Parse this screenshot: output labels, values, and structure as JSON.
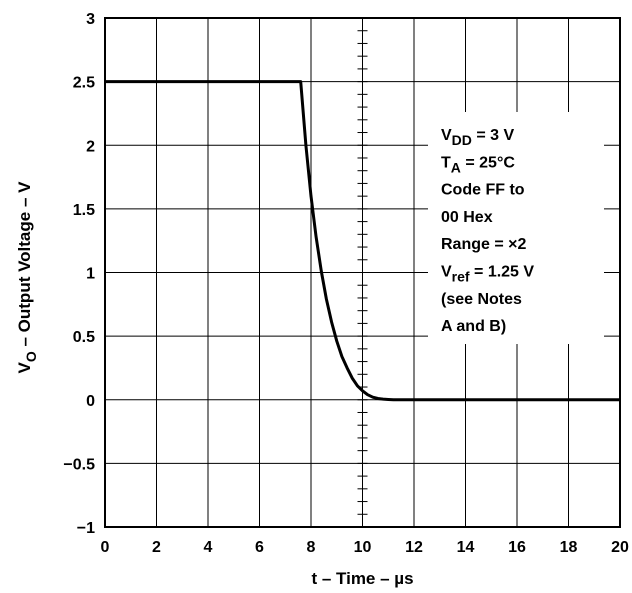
{
  "chart_data": {
    "type": "line",
    "title": "",
    "xlabel": "t – Time – µs",
    "ylabel": {
      "main": "V",
      "sub": "O",
      "rest": " – Output Voltage – V"
    },
    "xlim": [
      0,
      20
    ],
    "ylim": [
      -1,
      3
    ],
    "x_ticks": [
      0,
      2,
      4,
      6,
      8,
      10,
      12,
      14,
      16,
      18,
      20
    ],
    "x_tick_labels": [
      "0",
      "2",
      "4",
      "6",
      "8",
      "10",
      "12",
      "14",
      "16",
      "18",
      "20"
    ],
    "y_ticks": [
      -1,
      -0.5,
      0,
      0.5,
      1,
      1.5,
      2,
      2.5,
      3
    ],
    "y_tick_labels": [
      "−1",
      "−0.5",
      "0",
      "0.5",
      "1",
      "1.5",
      "2",
      "2.5",
      "3"
    ],
    "grid": true,
    "series": [
      {
        "x": [
          0,
          7.6,
          7.8,
          8.0,
          8.2,
          8.4,
          8.6,
          8.8,
          9.0,
          9.2,
          9.4,
          9.6,
          9.8,
          10.0,
          10.2,
          10.4,
          10.6,
          10.8,
          11.0,
          11.2,
          12,
          14,
          16,
          18,
          20
        ],
        "y": [
          2.5,
          2.5,
          2.0,
          1.6,
          1.28,
          1.01,
          0.79,
          0.61,
          0.46,
          0.34,
          0.25,
          0.17,
          0.11,
          0.07,
          0.04,
          0.02,
          0.01,
          0.005,
          0.002,
          0.0,
          0.0,
          0.0,
          0.0,
          0.0,
          0.0
        ]
      }
    ],
    "annotations": [
      {
        "lines": [
          {
            "main": "V",
            "sub": "DD",
            "rest": " = 3 V"
          },
          {
            "main": "T",
            "sub": "A",
            "rest": " = 25°C"
          },
          {
            "main": "Code FF to",
            "sub": "",
            "rest": ""
          },
          {
            "main": "00 Hex",
            "sub": "",
            "rest": ""
          },
          {
            "main": "Range = ×2",
            "sub": "",
            "rest": ""
          },
          {
            "main": "V",
            "sub": "ref",
            "rest": " = 1.25 V"
          },
          {
            "main": "(see Notes",
            "sub": "",
            "rest": ""
          },
          {
            "main": "A and B)",
            "sub": "",
            "rest": ""
          }
        ]
      }
    ]
  }
}
